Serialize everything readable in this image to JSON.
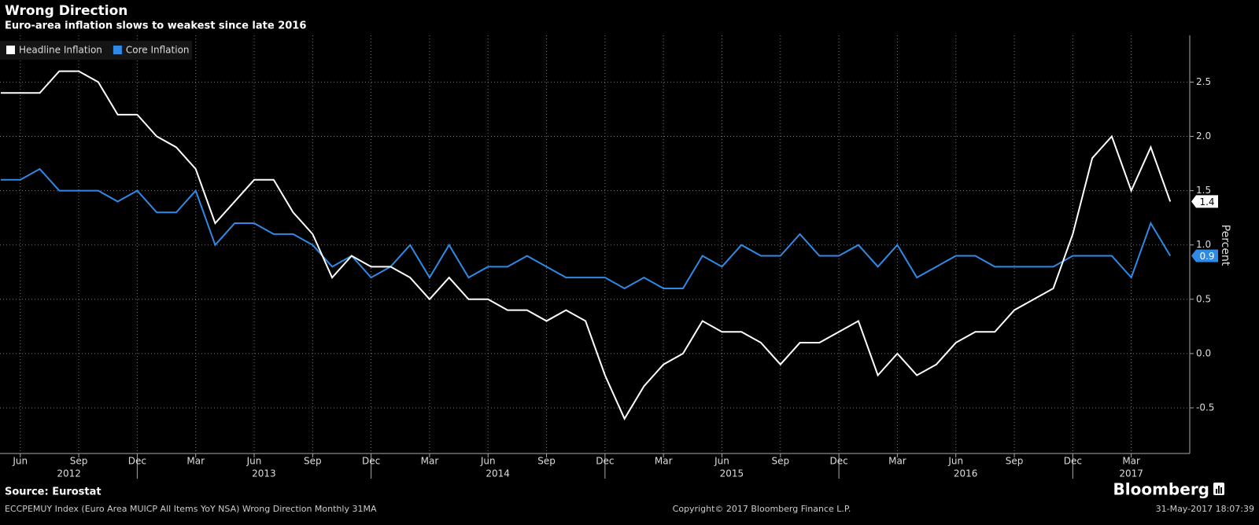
{
  "chart_data": {
    "type": "line",
    "title": "Wrong Direction",
    "subtitle": "Euro-area inflation slows to weakest since late 2016",
    "y_label": "Percent",
    "source": "Source: Eurostat",
    "brand": "Bloomberg",
    "footer_left": "ECCPEMUY Index (Euro Area MUICP All Items YoY NSA) Wrong Direction  Monthly 31MA",
    "footer_center": "Copyright© 2017 Bloomberg Finance L.P.",
    "footer_right": "31-May-2017 18:07:39",
    "x": [
      "2012-05",
      "2012-06",
      "2012-07",
      "2012-08",
      "2012-09",
      "2012-10",
      "2012-11",
      "2012-12",
      "2013-01",
      "2013-02",
      "2013-03",
      "2013-04",
      "2013-05",
      "2013-06",
      "2013-07",
      "2013-08",
      "2013-09",
      "2013-10",
      "2013-11",
      "2013-12",
      "2014-01",
      "2014-02",
      "2014-03",
      "2014-04",
      "2014-05",
      "2014-06",
      "2014-07",
      "2014-08",
      "2014-09",
      "2014-10",
      "2014-11",
      "2014-12",
      "2015-01",
      "2015-02",
      "2015-03",
      "2015-04",
      "2015-05",
      "2015-06",
      "2015-07",
      "2015-08",
      "2015-09",
      "2015-10",
      "2015-11",
      "2015-12",
      "2016-01",
      "2016-02",
      "2016-03",
      "2016-04",
      "2016-05",
      "2016-06",
      "2016-07",
      "2016-08",
      "2016-09",
      "2016-10",
      "2016-11",
      "2016-12",
      "2017-01",
      "2017-02",
      "2017-03",
      "2017-04",
      "2017-05"
    ],
    "x_years": [
      "2012",
      "2013",
      "2014",
      "2015",
      "2016",
      "2017"
    ],
    "xticks": [
      {
        "value": "2012-06",
        "label": "Jun"
      },
      {
        "value": "2012-09",
        "label": "Sep"
      },
      {
        "value": "2012-12",
        "label": "Dec"
      },
      {
        "value": "2013-03",
        "label": "Mar"
      },
      {
        "value": "2013-06",
        "label": "Jun"
      },
      {
        "value": "2013-09",
        "label": "Sep"
      },
      {
        "value": "2013-12",
        "label": "Dec"
      },
      {
        "value": "2014-03",
        "label": "Mar"
      },
      {
        "value": "2014-06",
        "label": "Jun"
      },
      {
        "value": "2014-09",
        "label": "Sep"
      },
      {
        "value": "2014-12",
        "label": "Dec"
      },
      {
        "value": "2015-03",
        "label": "Mar"
      },
      {
        "value": "2015-06",
        "label": "Jun"
      },
      {
        "value": "2015-09",
        "label": "Sep"
      },
      {
        "value": "2015-12",
        "label": "Dec"
      },
      {
        "value": "2016-03",
        "label": "Mar"
      },
      {
        "value": "2016-06",
        "label": "Jun"
      },
      {
        "value": "2016-09",
        "label": "Sep"
      },
      {
        "value": "2016-12",
        "label": "Dec"
      },
      {
        "value": "2017-03",
        "label": "Mar"
      }
    ],
    "ylim": [
      -0.92,
      2.93
    ],
    "yticks": [
      -0.5,
      {
        "value": 0,
        "label": "0.0"
      },
      0.5,
      {
        "value": 1,
        "label": "1.0"
      },
      1.5,
      {
        "value": 2,
        "label": "2.0"
      },
      2.5
    ],
    "grid": true,
    "legend": "top-left",
    "series": [
      {
        "name": "Headline Inflation",
        "color": "#ffffff",
        "values": [
          2.4,
          2.4,
          2.4,
          2.6,
          2.6,
          2.5,
          2.2,
          2.2,
          2.0,
          1.9,
          1.7,
          1.2,
          1.4,
          1.6,
          1.6,
          1.3,
          1.1,
          0.7,
          0.9,
          0.8,
          0.8,
          0.7,
          0.5,
          0.7,
          0.5,
          0.5,
          0.4,
          0.4,
          0.3,
          0.4,
          0.3,
          -0.2,
          -0.6,
          -0.3,
          -0.1,
          0.0,
          0.3,
          0.2,
          0.2,
          0.1,
          -0.1,
          0.1,
          0.1,
          0.2,
          0.3,
          -0.2,
          0.0,
          -0.2,
          -0.1,
          0.1,
          0.2,
          0.2,
          0.4,
          0.5,
          0.6,
          1.1,
          1.8,
          2.0,
          1.5,
          1.9,
          1.4
        ]
      },
      {
        "name": "Core Inflation",
        "color": "#2f8ae6",
        "values": [
          1.6,
          1.6,
          1.7,
          1.5,
          1.5,
          1.5,
          1.4,
          1.5,
          1.3,
          1.3,
          1.5,
          1.0,
          1.2,
          1.2,
          1.1,
          1.1,
          1.0,
          0.8,
          0.9,
          0.7,
          0.8,
          1.0,
          0.7,
          1.0,
          0.7,
          0.8,
          0.8,
          0.9,
          0.8,
          0.7,
          0.7,
          0.7,
          0.6,
          0.7,
          0.6,
          0.6,
          0.9,
          0.8,
          1.0,
          0.9,
          0.9,
          1.1,
          0.9,
          0.9,
          1.0,
          0.8,
          1.0,
          0.7,
          0.8,
          0.9,
          0.9,
          0.8,
          0.8,
          0.8,
          0.8,
          0.9,
          0.9,
          0.9,
          0.7,
          1.2,
          0.9
        ]
      }
    ]
  }
}
